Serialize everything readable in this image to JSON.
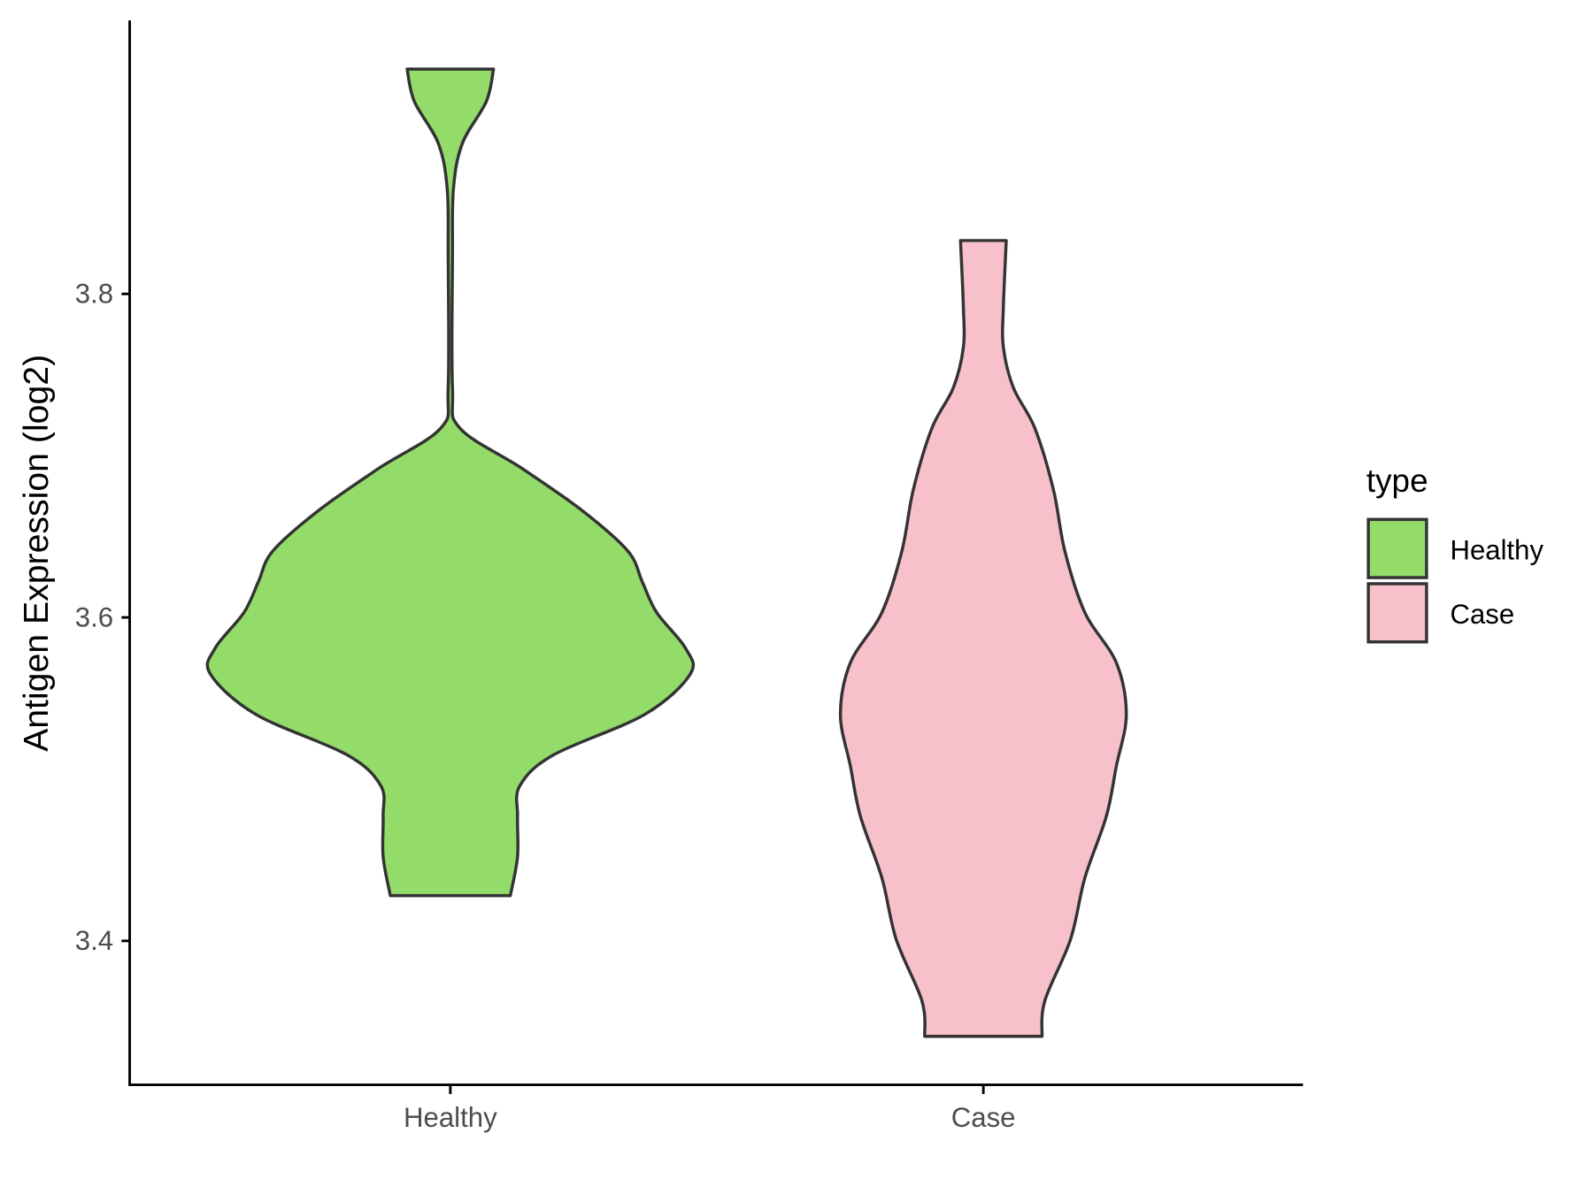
{
  "chart_data": {
    "type": "violin",
    "title": "",
    "xlabel": "",
    "ylabel": "Antigen Expression (log2)",
    "ylim": [
      3.315,
      3.96
    ],
    "yticks": [
      "3.4",
      "3.6",
      "3.8"
    ],
    "ytick_values": [
      3.4,
      3.6,
      3.8
    ],
    "categories": [
      "Healthy",
      "Case"
    ],
    "legend": {
      "title": "type",
      "position": "right",
      "entries": [
        "Healthy",
        "Case"
      ]
    },
    "colors": {
      "Healthy": "#93DC6A",
      "Case": "#F8C0CB",
      "outline": "#333333"
    },
    "series": [
      {
        "name": "Healthy",
        "min": 3.428,
        "max": 3.939,
        "profile": [
          [
            3.939,
            0.18
          ],
          [
            3.919,
            0.15
          ],
          [
            3.893,
            0.05
          ],
          [
            3.865,
            0.013
          ],
          [
            3.824,
            0.009
          ],
          [
            3.742,
            0.009
          ],
          [
            3.717,
            0.04
          ],
          [
            3.692,
            0.3
          ],
          [
            3.666,
            0.55
          ],
          [
            3.641,
            0.74
          ],
          [
            3.622,
            0.8
          ],
          [
            3.603,
            0.86
          ],
          [
            3.581,
            0.98
          ],
          [
            3.565,
            1.0
          ],
          [
            3.54,
            0.81
          ],
          [
            3.515,
            0.43
          ],
          [
            3.496,
            0.29
          ],
          [
            3.477,
            0.28
          ],
          [
            3.452,
            0.28
          ],
          [
            3.428,
            0.25
          ]
        ]
      },
      {
        "name": "Case",
        "min": 3.341,
        "max": 3.833,
        "profile": [
          [
            3.833,
            0.16
          ],
          [
            3.792,
            0.14
          ],
          [
            3.767,
            0.14
          ],
          [
            3.742,
            0.21
          ],
          [
            3.717,
            0.36
          ],
          [
            3.679,
            0.49
          ],
          [
            3.641,
            0.57
          ],
          [
            3.603,
            0.71
          ],
          [
            3.572,
            0.93
          ],
          [
            3.54,
            1.0
          ],
          [
            3.508,
            0.93
          ],
          [
            3.477,
            0.86
          ],
          [
            3.439,
            0.71
          ],
          [
            3.401,
            0.61
          ],
          [
            3.363,
            0.43
          ],
          [
            3.341,
            0.41
          ]
        ]
      }
    ]
  }
}
